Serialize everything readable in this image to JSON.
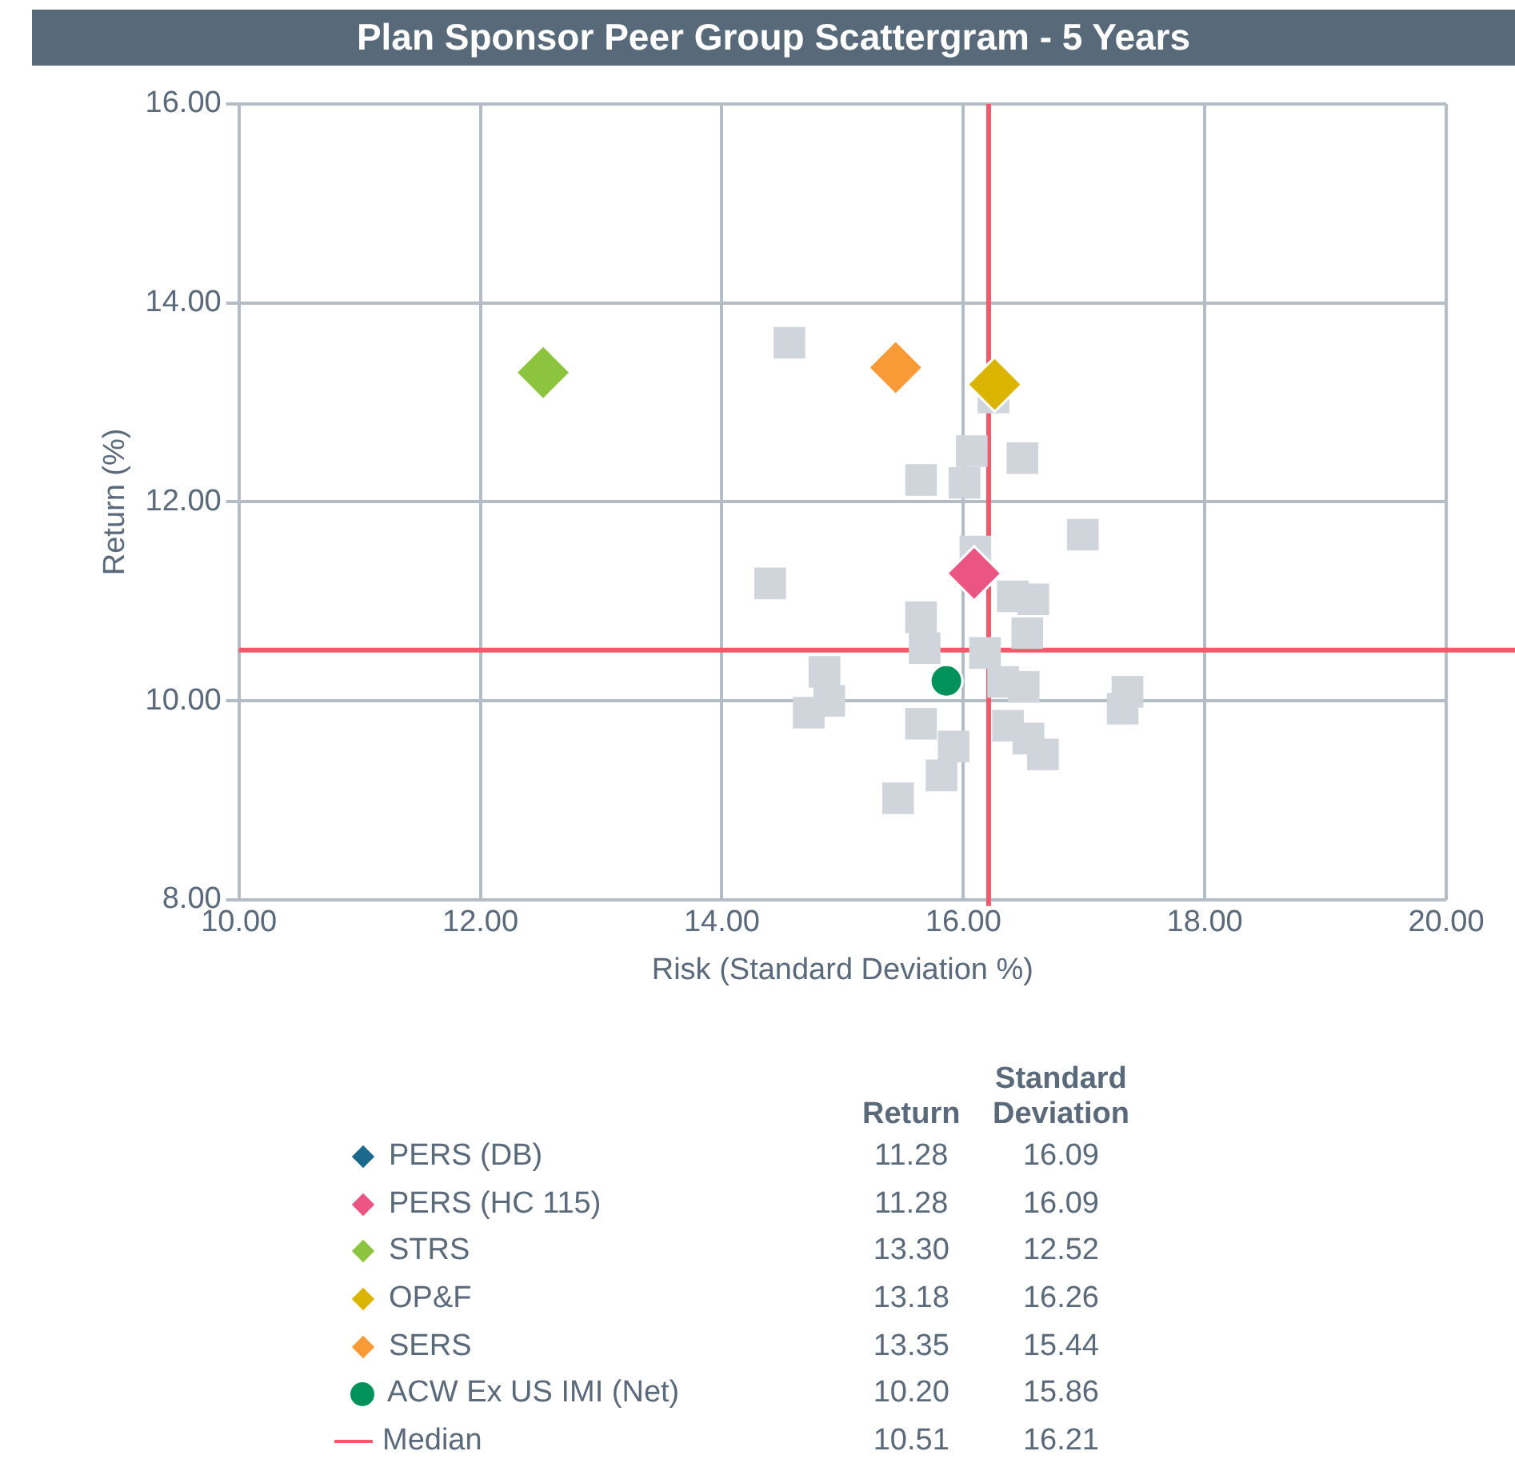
{
  "chart_data": {
    "type": "scatter",
    "title": "Plan Sponsor Peer Group Scattergram - 5 Years",
    "xlabel": "Risk (Standard Deviation %)",
    "ylabel": "Return (%)",
    "xlim": [
      10,
      20
    ],
    "xticks": [
      {
        "value": 10,
        "label": "10.00"
      },
      {
        "value": 12,
        "label": "12.00"
      },
      {
        "value": 14,
        "label": "14.00"
      },
      {
        "value": 16,
        "label": "16.00"
      },
      {
        "value": 18,
        "label": "18.00"
      },
      {
        "value": 20,
        "label": "20.00"
      }
    ],
    "ylim": [
      8,
      16
    ],
    "yticks": [
      {
        "value": 8,
        "label": "8.00"
      },
      {
        "value": 10,
        "label": "10.00"
      },
      {
        "value": 12,
        "label": "12.00"
      },
      {
        "value": 14,
        "label": "14.00"
      },
      {
        "value": 16,
        "label": "16.00"
      }
    ],
    "grid": true,
    "legend": "bottom",
    "annotations": [
      "Return",
      "Standard Deviation",
      "11.28",
      "16.09",
      "11.28",
      "16.09",
      "13.30",
      "12.52",
      "13.18",
      "16.26",
      "13.35",
      "15.44",
      "10.20",
      "15.86",
      "10.51",
      "16.21"
    ],
    "ref_lines": [
      {
        "axis": "x",
        "value": 16.21,
        "label": "Median",
        "color": "#f05a6a"
      },
      {
        "axis": "y",
        "value": 10.51,
        "color": "#f05a6a"
      }
    ],
    "series": [
      {
        "color": "#d0d5dc",
        "marker": "square",
        "x": [
          14.56,
          16.25,
          16.07,
          16.49,
          15.65,
          16.01,
          16.99,
          16.1,
          14.4,
          16.41,
          16.58,
          15.65,
          16.53,
          15.68,
          16.18,
          14.85,
          14.89,
          14.72,
          16.33,
          16.5,
          17.36,
          17.32,
          15.65,
          15.92,
          15.82,
          15.46,
          16.37,
          16.54,
          16.66
        ],
        "values": [
          13.6,
          13.05,
          12.51,
          12.44,
          12.22,
          12.19,
          11.67,
          11.5,
          11.18,
          11.05,
          11.02,
          10.84,
          10.68,
          10.53,
          10.48,
          10.29,
          10.0,
          9.88,
          10.19,
          10.14,
          10.09,
          9.92,
          9.77,
          9.54,
          9.25,
          9.02,
          9.75,
          9.62,
          9.46
        ]
      },
      {
        "name": "PERS (DB)",
        "color": "#1b6a8e",
        "marker": "diamond",
        "x": [
          null
        ],
        "values": [
          null
        ]
      },
      {
        "name": "PERS (HC 115)",
        "color": "#eb5584",
        "marker": "diamond",
        "x": [
          16.09
        ],
        "values": [
          11.28
        ]
      },
      {
        "name": "STRS",
        "color": "#8cc43f",
        "marker": "diamond",
        "x": [
          12.52
        ],
        "values": [
          13.3
        ]
      },
      {
        "name": "OP&F",
        "color": "#dbb400",
        "marker": "diamond",
        "x": [
          16.26
        ],
        "values": [
          13.18
        ]
      },
      {
        "name": "SERS",
        "color": "#f89a35",
        "marker": "diamond",
        "x": [
          15.44
        ],
        "values": [
          13.35
        ]
      },
      {
        "name": "ACW Ex US IMI (Net)",
        "color": "#00925a",
        "marker": "circle",
        "x": [
          15.86
        ],
        "values": [
          10.2
        ]
      }
    ]
  }
}
